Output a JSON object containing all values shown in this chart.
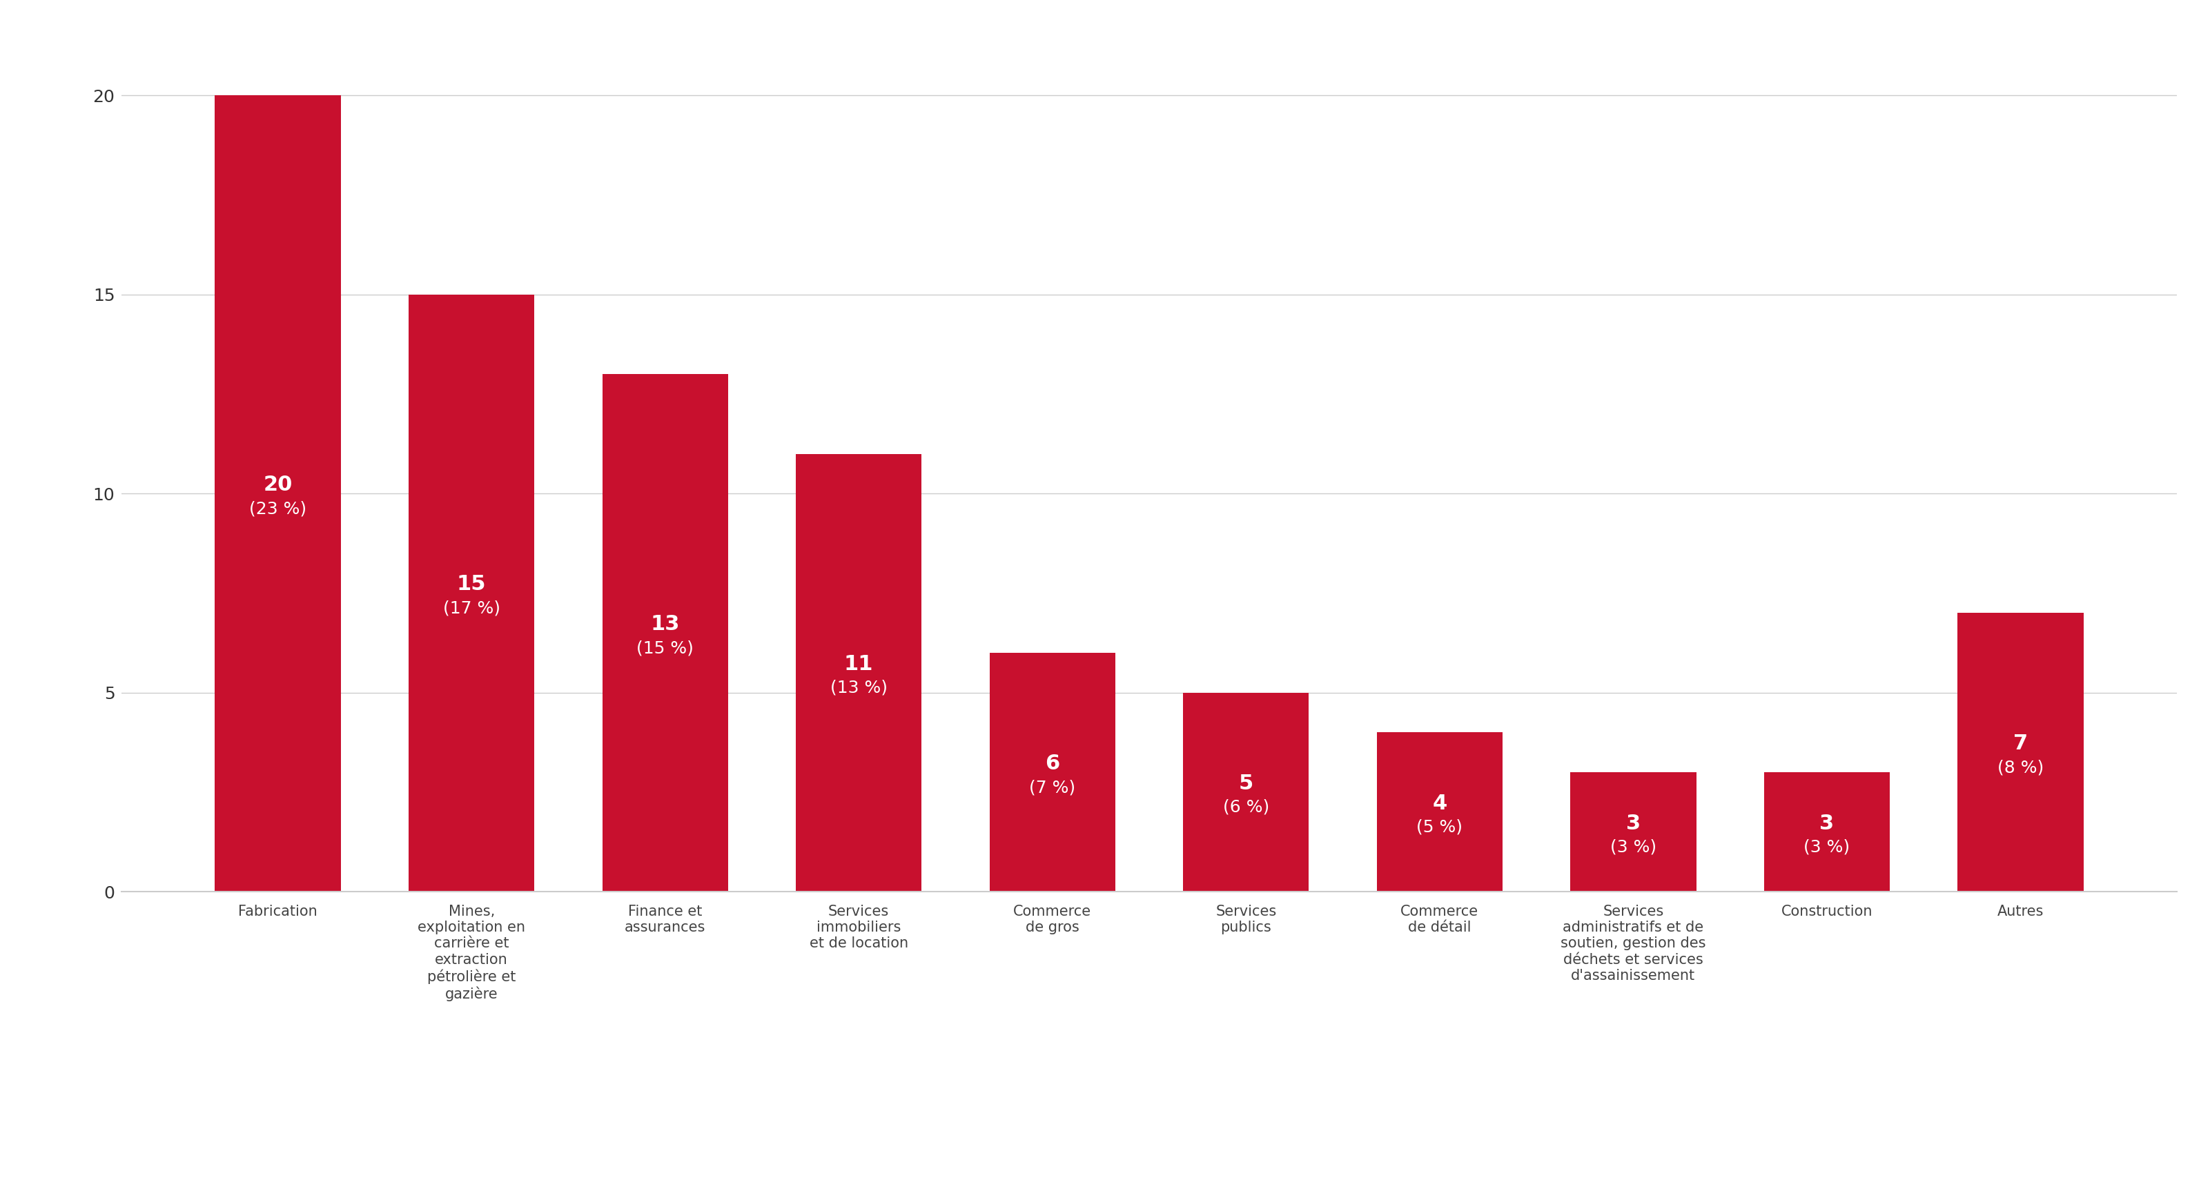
{
  "categories": [
    "Fabrication",
    "Mines,\nexploitation en\ncarrière et\nextraction\npétrolière et\ngazière",
    "Finance et\nassurances",
    "Services\nimmobiliers\net de location",
    "Commerce\nde gros",
    "Services\npublics",
    "Commerce\nde détail",
    "Services\nadministratifs et de\nsoutien, gestion des\ndéchets et services\nd'assainissement",
    "Construction",
    "Autres"
  ],
  "values": [
    20,
    15,
    13,
    11,
    6,
    5,
    4,
    3,
    3,
    7
  ],
  "percentages": [
    "23 %",
    "17 %",
    "15 %",
    "13 %",
    "7 %",
    "6 %",
    "5 %",
    "3 %",
    "3 %",
    "8 %"
  ],
  "bar_color": "#c8102e",
  "background_color": "#ffffff",
  "text_color": "#ffffff",
  "axis_color": "#cccccc",
  "tick_color": "#333333",
  "ylim": [
    0,
    21.5
  ],
  "yticks": [
    0,
    5,
    10,
    15,
    20
  ],
  "figure_width": 32.02,
  "figure_height": 17.23,
  "bar_label_fontsize": 22,
  "bar_pct_fontsize": 18,
  "tick_fontsize": 18,
  "xtick_fontsize": 15,
  "bar_width": 0.65
}
